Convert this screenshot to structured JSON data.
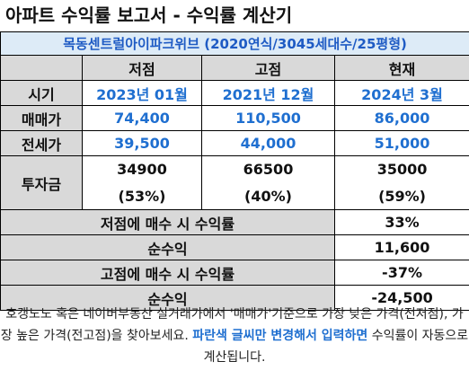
{
  "title": "아파트 수익률 보고서 - 수익률 계산기",
  "subtitle": "목동센트럴아이파크위브 (2020연식/3045세대수/25평형)",
  "header": {
    "blank": "",
    "low": "저점",
    "high": "고점",
    "current": "현재"
  },
  "rows": {
    "period": {
      "label": "시기",
      "low": "2023년 01월",
      "high": "2021년 12월",
      "current": "2024년 3월"
    },
    "sale": {
      "label": "매매가",
      "low": "74,400",
      "high": "110,500",
      "current": "86,000"
    },
    "jeonse": {
      "label": "전세가",
      "low": "39,500",
      "high": "44,000",
      "current": "51,000"
    },
    "investment": {
      "label": "투자금",
      "low": "34900",
      "low_pct": "(53%)",
      "high": "66500",
      "high_pct": "(40%)",
      "current": "35000",
      "current_pct": "(59%)"
    }
  },
  "results": {
    "buy_low_label": "저점에 매수 시 수익률",
    "buy_low_value": "33%",
    "net_low_label": "순수익",
    "net_low_value": "11,600",
    "buy_high_label": "고점에 매수 시 수익률",
    "buy_high_value": "-37%",
    "net_high_label": "순수익",
    "net_high_value": "-24,500"
  },
  "note": {
    "part1": "호갱노노 혹은 네이버부동산 실거래가에서 '매매가'기준으로 가장 낮은 가격(전저점), 가장 높은 가격(전고점)을 찾아보세요. ",
    "highlight": "파란색 글씨만 변경해서 입력하면",
    "part2": " 수익률이 자동으로 계산됩니다."
  },
  "colors": {
    "accent_blue": "#1f6fd0",
    "subtitle_bg": "#ddebf7",
    "grey_cell": "#d9d9d9"
  }
}
